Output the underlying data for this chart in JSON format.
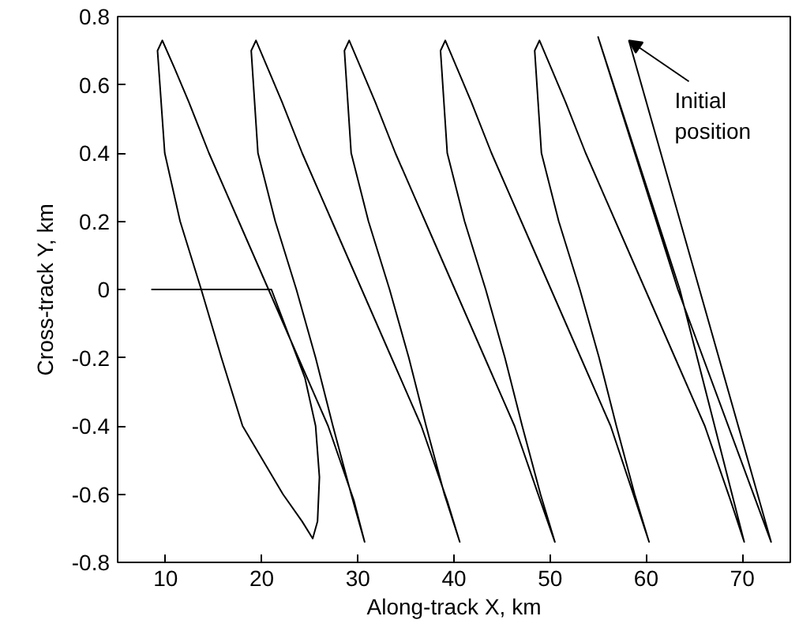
{
  "chart_data": {
    "type": "line",
    "xlabel": "Along-track X, km",
    "ylabel": "Cross-track Y, km",
    "xlim": [
      5,
      75
    ],
    "xticks": [
      10,
      20,
      30,
      40,
      50,
      60,
      70
    ],
    "ylim": [
      -0.8,
      0.8
    ],
    "yticks": [
      -0.8,
      -0.6,
      -0.4,
      -0.2,
      0,
      0.2,
      0.4,
      0.6,
      0.8
    ],
    "grid": false,
    "annotations": [
      {
        "text": "Initial\nposition",
        "x": 58.2,
        "y": 0.73
      }
    ],
    "series": [
      {
        "color": "#000000",
        "x": [
          58.2,
          73.0,
          63.3,
          55.0,
          63.5,
          70.2,
          68.8,
          66.1,
          63.0,
          59.9,
          56.8,
          53.7,
          51.6,
          50.1,
          48.9,
          48.4,
          49.1,
          50.9,
          53.1,
          55.1,
          56.9,
          58.8,
          60.3,
          58.9,
          56.3,
          53.2,
          50.1,
          47.0,
          43.9,
          41.8,
          40.3,
          39.1,
          38.6,
          39.3,
          41.1,
          43.3,
          45.3,
          47.1,
          49.0,
          50.5,
          49.0,
          46.3,
          43.2,
          40.1,
          37.0,
          33.9,
          31.8,
          30.3,
          29.1,
          28.6,
          29.3,
          31.1,
          33.3,
          35.3,
          37.1,
          39.0,
          40.6,
          39.3,
          36.6,
          33.5,
          30.4,
          27.3,
          24.2,
          22.1,
          20.6,
          19.4,
          18.9,
          19.6,
          21.4,
          23.6,
          25.6,
          27.4,
          29.3,
          30.7,
          29.6,
          26.9,
          23.8,
          20.7,
          17.6,
          14.5,
          12.4,
          10.9,
          9.65,
          9.15,
          9.9,
          11.5,
          13.7,
          15.8,
          18.0,
          22.2,
          24.2,
          25.3,
          25.8,
          26.0,
          25.6,
          24.5,
          21.0,
          8.5
        ],
        "values": [
          0.73,
          -0.74,
          0.0,
          0.74,
          0.0,
          -0.74,
          -0.62,
          -0.4,
          -0.2,
          0,
          0.2,
          0.4,
          0.55,
          0.65,
          0.73,
          0.7,
          0.4,
          0.2,
          0,
          -0.2,
          -0.4,
          -0.6,
          -0.74,
          -0.62,
          -0.4,
          -0.2,
          0,
          0.2,
          0.4,
          0.55,
          0.65,
          0.73,
          0.7,
          0.4,
          0.2,
          0,
          -0.2,
          -0.4,
          -0.6,
          -0.74,
          -0.62,
          -0.4,
          -0.2,
          0,
          0.2,
          0.4,
          0.55,
          0.65,
          0.73,
          0.7,
          0.4,
          0.2,
          0,
          -0.2,
          -0.4,
          -0.6,
          -0.74,
          -0.62,
          -0.4,
          -0.2,
          0,
          0.2,
          0.4,
          0.55,
          0.65,
          0.73,
          0.7,
          0.4,
          0.2,
          0,
          -0.2,
          -0.4,
          -0.6,
          -0.74,
          -0.62,
          -0.4,
          -0.2,
          0,
          0.2,
          0.4,
          0.55,
          0.65,
          0.73,
          0.7,
          0.4,
          0.2,
          0,
          -0.2,
          -0.4,
          -0.6,
          -0.68,
          -0.73,
          -0.68,
          -0.55,
          -0.4,
          -0.26,
          0,
          0
        ]
      }
    ]
  }
}
